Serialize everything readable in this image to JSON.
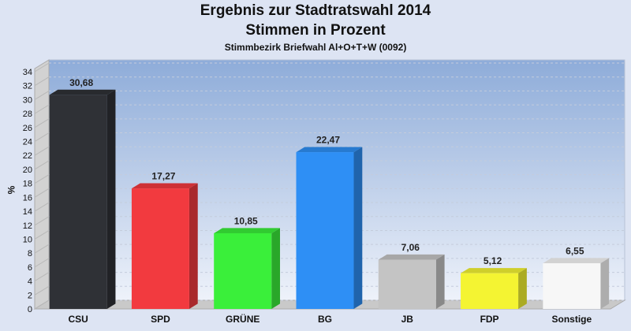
{
  "header": {
    "title": "Ergebnis zur Stadtratswahl 2014",
    "subtitle": "Stimmen in Prozent",
    "district": "Stimmbezirk Briefwahl Al+O+T+W (0092)"
  },
  "chart_data": {
    "type": "bar",
    "title": "Ergebnis zur Stadtratswahl 2014",
    "subtitle": "Stimmen in Prozent",
    "note": "Stimmbezirk Briefwahl Al+O+T+W (0092)",
    "categories": [
      "CSU",
      "SPD",
      "GRÜNE",
      "BG",
      "JB",
      "FDP",
      "Sonstige"
    ],
    "values": [
      30.68,
      17.27,
      10.85,
      22.47,
      7.06,
      5.12,
      6.55
    ],
    "value_labels": [
      "30,68",
      "17,27",
      "10,85",
      "22,47",
      "7,06",
      "5,12",
      "6,55"
    ],
    "colors": [
      "#2f3136",
      "#f23a3f",
      "#3aef3a",
      "#2e8ff5",
      "#c4c4c4",
      "#f4f432",
      "#f7f7f7"
    ],
    "xlabel": "",
    "ylabel": "%",
    "ylim": [
      0,
      34
    ],
    "ytick_step": 2,
    "grid": true,
    "legend": "none"
  }
}
